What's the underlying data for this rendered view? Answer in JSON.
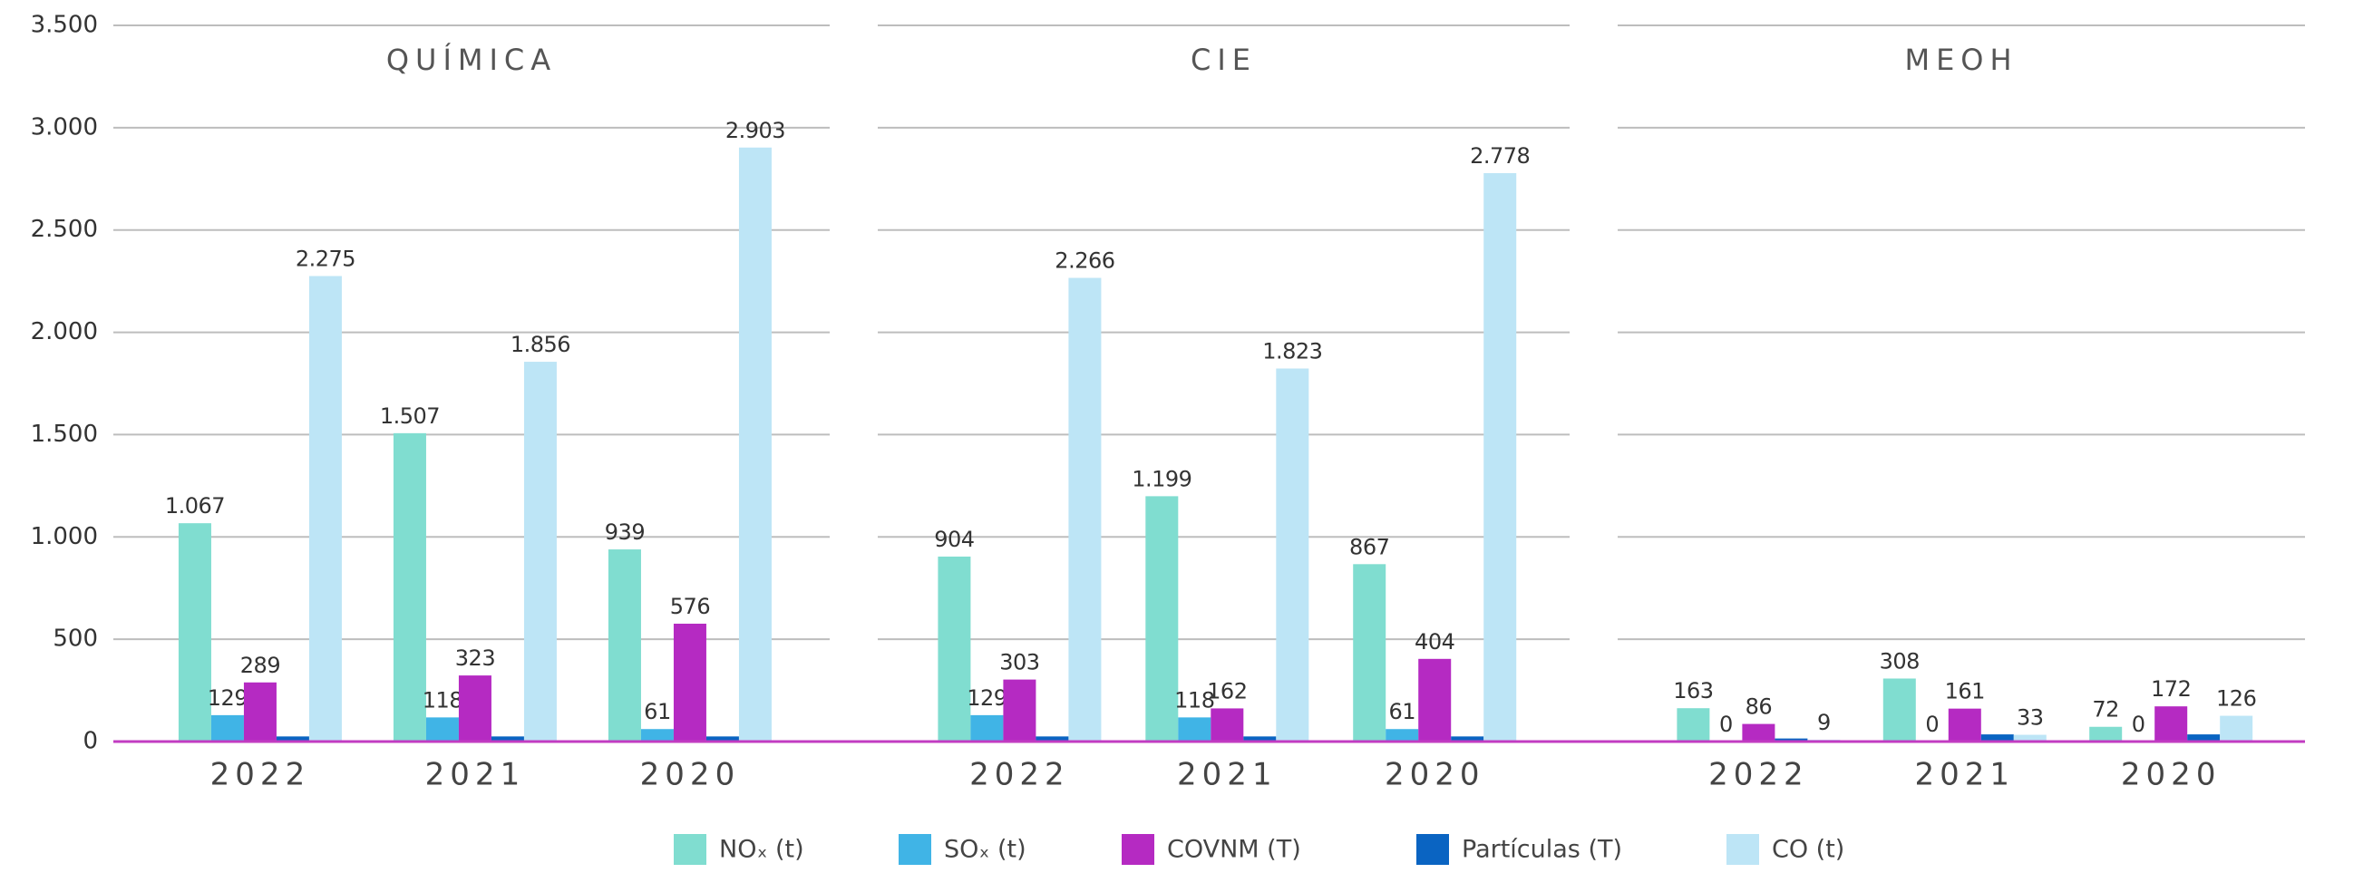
{
  "chart_data": {
    "type": "bar",
    "ylim": [
      0,
      3500
    ],
    "yticks": [
      0,
      500,
      {
        "value": 1000,
        "label": "1.000"
      },
      {
        "value": 1500,
        "label": "1.500"
      },
      {
        "value": 2000,
        "label": "2.000"
      },
      {
        "value": 2500,
        "label": "2.500"
      },
      {
        "value": 3000,
        "label": "3.000"
      },
      {
        "value": 3500,
        "label": "3.500"
      }
    ],
    "grid": true,
    "categories": [
      "2022",
      "2021",
      "2020"
    ],
    "series": [
      {
        "name": "NOₓ (t)",
        "color": "#80ddd0"
      },
      {
        "name": "SOₓ (t)",
        "color": "#40b4e6"
      },
      {
        "name": "COVNM (T)",
        "color": "#b52ac2"
      },
      {
        "name": "Partículas (T)",
        "color": "#0a64c2"
      },
      {
        "name": "CO (t)",
        "color": "#bde5f6"
      }
    ],
    "panels": [
      {
        "title": "QUÍMICA",
        "series": [
          {
            "values": [
              1067,
              1507,
              939
            ],
            "value_labels": [
              "1.067",
              "1.507",
              "939"
            ]
          },
          {
            "values": [
              129,
              118,
              61
            ]
          },
          {
            "values": [
              289,
              323,
              576
            ]
          },
          {
            "values": [
              25,
              25,
              25
            ]
          },
          {
            "values": [
              2275,
              1856,
              2903
            ],
            "value_labels": [
              "2.275",
              "1.856",
              "2.903"
            ]
          }
        ]
      },
      {
        "title": "CIE",
        "series": [
          {
            "values": [
              904,
              1199,
              867
            ],
            "value_labels": [
              "904",
              "1.199",
              "867"
            ]
          },
          {
            "values": [
              129,
              118,
              61
            ]
          },
          {
            "values": [
              303,
              162,
              404
            ]
          },
          {
            "values": [
              25,
              25,
              25
            ]
          },
          {
            "values": [
              2266,
              1823,
              2778
            ],
            "value_labels": [
              "2.266",
              "1.823",
              "2.778"
            ]
          }
        ]
      },
      {
        "title": "MEOH",
        "series": [
          {
            "values": [
              163,
              308,
              72
            ]
          },
          {
            "values": [
              0,
              0,
              0
            ]
          },
          {
            "values": [
              86,
              161,
              172
            ]
          },
          {
            "values": [
              15,
              35,
              35
            ]
          },
          {
            "values": [
              9,
              33,
              126
            ]
          }
        ]
      }
    ]
  }
}
